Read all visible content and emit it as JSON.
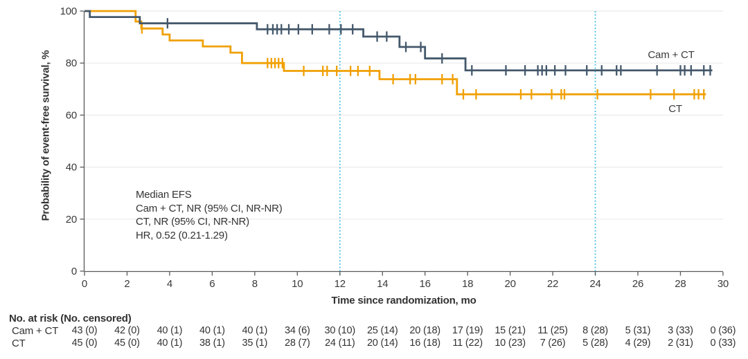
{
  "chart_data": {
    "type": "line",
    "subtype": "kaplan-meier-step",
    "title": "",
    "xlabel": "Time since randomization, mo",
    "ylabel": "Probability of event-free survival, %",
    "xlim": [
      0,
      30
    ],
    "ylim": [
      0,
      100
    ],
    "x_ticks": [
      0,
      2,
      4,
      6,
      8,
      10,
      12,
      14,
      16,
      18,
      20,
      22,
      24,
      26,
      28,
      30
    ],
    "y_ticks": [
      0,
      20,
      40,
      60,
      80,
      100
    ],
    "grid": "horizontal",
    "reference_lines_x": [
      12,
      24
    ],
    "colors": {
      "camct": "#44586b",
      "ct": "#f0a005",
      "reference": "#4cc0e4",
      "grid": "#eaeaea",
      "axis": "#58595b",
      "text": "#3a3a3a"
    },
    "series": [
      {
        "name": "Cam + CT",
        "color_key": "camct",
        "steps": [
          [
            0,
            100
          ],
          [
            0.25,
            97.7
          ],
          [
            2.6,
            95.3
          ],
          [
            8.1,
            93
          ],
          [
            13.1,
            90.2
          ],
          [
            14.8,
            86.2
          ],
          [
            16.0,
            81.8
          ],
          [
            17.9,
            77.2
          ],
          [
            29.5,
            77.2
          ]
        ],
        "censors": [
          [
            3.9,
            95.3
          ],
          [
            8.6,
            93
          ],
          [
            8.85,
            93
          ],
          [
            9.05,
            93
          ],
          [
            9.25,
            93
          ],
          [
            9.6,
            93
          ],
          [
            10.05,
            93
          ],
          [
            10.7,
            93
          ],
          [
            11.5,
            93
          ],
          [
            12.05,
            93
          ],
          [
            12.6,
            93
          ],
          [
            13.75,
            90.2
          ],
          [
            14.2,
            90.2
          ],
          [
            15.1,
            86.2
          ],
          [
            15.8,
            86.2
          ],
          [
            16.8,
            81.8
          ],
          [
            18.2,
            77.2
          ],
          [
            19.8,
            77.2
          ],
          [
            20.7,
            77.2
          ],
          [
            21.3,
            77.2
          ],
          [
            21.5,
            77.2
          ],
          [
            21.7,
            77.2
          ],
          [
            22.1,
            77.2
          ],
          [
            22.6,
            77.2
          ],
          [
            23.6,
            77.2
          ],
          [
            24.3,
            77.2
          ],
          [
            25.0,
            77.2
          ],
          [
            25.2,
            77.2
          ],
          [
            26.9,
            77.2
          ],
          [
            28.0,
            77.2
          ],
          [
            28.2,
            77.2
          ],
          [
            28.5,
            77.2
          ],
          [
            29.1,
            77.2
          ],
          [
            29.4,
            77.2
          ]
        ]
      },
      {
        "name": "CT",
        "color_key": "ct",
        "steps": [
          [
            0,
            100
          ],
          [
            2.4,
            96
          ],
          [
            2.67,
            93.3
          ],
          [
            3.67,
            91
          ],
          [
            4.0,
            88.7
          ],
          [
            5.56,
            86.4
          ],
          [
            6.86,
            84
          ],
          [
            7.4,
            80
          ],
          [
            9.37,
            77
          ],
          [
            13.86,
            73.8
          ],
          [
            17.5,
            68
          ],
          [
            29.2,
            68
          ]
        ],
        "censors": [
          [
            2.7,
            93.3
          ],
          [
            8.6,
            80
          ],
          [
            8.78,
            80
          ],
          [
            8.95,
            80
          ],
          [
            9.12,
            80
          ],
          [
            9.3,
            80
          ],
          [
            10.3,
            77
          ],
          [
            11.2,
            77
          ],
          [
            11.4,
            77
          ],
          [
            11.85,
            77
          ],
          [
            12.5,
            77
          ],
          [
            12.85,
            77
          ],
          [
            13.4,
            77
          ],
          [
            14.5,
            73.8
          ],
          [
            15.3,
            73.8
          ],
          [
            15.55,
            73.8
          ],
          [
            16.8,
            73.8
          ],
          [
            17.3,
            73.8
          ],
          [
            17.8,
            68
          ],
          [
            18.4,
            68
          ],
          [
            20.5,
            68
          ],
          [
            21.0,
            68
          ],
          [
            21.95,
            68
          ],
          [
            22.4,
            68
          ],
          [
            22.55,
            68
          ],
          [
            24.1,
            68
          ],
          [
            26.6,
            68
          ],
          [
            27.7,
            68
          ],
          [
            28.65,
            68
          ],
          [
            28.85,
            68
          ],
          [
            29.1,
            68
          ]
        ]
      }
    ],
    "curve_end_labels": {
      "camct": "Cam + CT",
      "ct": "CT"
    },
    "annotation": {
      "line1": "Median EFS",
      "line2": "Cam + CT, NR (95% CI, NR-NR)",
      "line3": "CT, NR (95% CI, NR-NR)",
      "line4": "HR, 0.52 (0.21-1.29)"
    },
    "risk_table": {
      "header": "No. at risk (No. censored)",
      "rows": [
        {
          "label": "Cam + CT",
          "values": [
            "43 (0)",
            "42 (0)",
            "40 (1)",
            "40 (1)",
            "40 (1)",
            "34 (6)",
            "30 (10)",
            "25 (14)",
            "20 (18)",
            "17 (19)",
            "15 (21)",
            "11 (25)",
            "8 (28)",
            "5 (31)",
            "3 (33)",
            "0 (36)"
          ]
        },
        {
          "label": "CT",
          "values": [
            "45 (0)",
            "45 (0)",
            "40 (1)",
            "38 (1)",
            "35 (1)",
            "28 (7)",
            "24 (11)",
            "20 (14)",
            "16 (18)",
            "11 (22)",
            "10 (23)",
            "7 (26)",
            "5 (28)",
            "4 (29)",
            "2 (31)",
            "0 (33)"
          ]
        }
      ]
    }
  }
}
